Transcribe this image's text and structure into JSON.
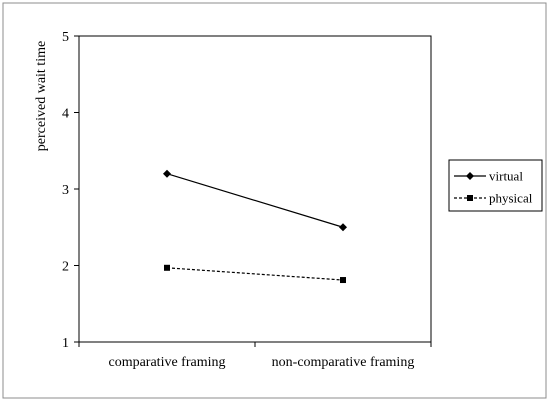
{
  "chart_data": {
    "type": "line",
    "title": "",
    "xlabel": "",
    "ylabel": "perceived wait time",
    "categories": [
      "comparative framing",
      "non-comparative framing"
    ],
    "yticks": [
      "1",
      "2",
      "3",
      "4",
      "5"
    ],
    "ylim": [
      1,
      5
    ],
    "grid": false,
    "legend_position": "right",
    "series": [
      {
        "name": "virtual",
        "values": [
          3.2,
          2.5
        ],
        "marker": "diamond",
        "line_style": "solid",
        "color": "#000000"
      },
      {
        "name": "physical",
        "values": [
          1.97,
          1.81
        ],
        "marker": "square",
        "line_style": "dashed",
        "color": "#000000"
      }
    ]
  }
}
